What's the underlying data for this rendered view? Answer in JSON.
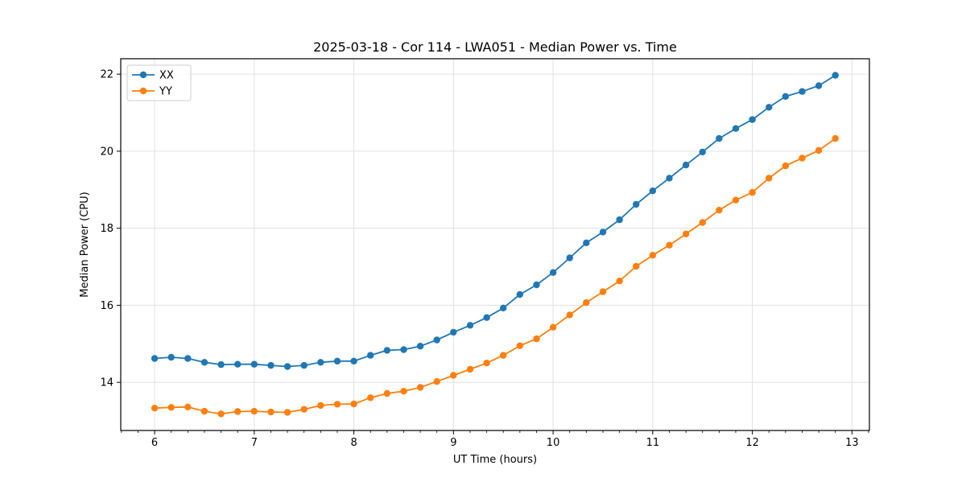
{
  "figure": {
    "background": "#ffffff",
    "text_color": "#000000",
    "grid_color": "#e0e0e0",
    "spine_color": "#000000",
    "legend_border_color": "#cccccc"
  },
  "chart_data": {
    "type": "line",
    "title": "2025-03-18 - Cor 114 - LWA051 - Median Power vs. Time",
    "xlabel": "UT Time (hours)",
    "ylabel": "Median Power (CPU)",
    "xlim": [
      5.66,
      13.175
    ],
    "ylim": [
      12.75,
      22.4
    ],
    "x_ticks": [
      6,
      7,
      8,
      9,
      10,
      11,
      12,
      13
    ],
    "y_ticks": [
      14,
      16,
      18,
      20,
      22
    ],
    "x_minor_tick_step": 0.166667,
    "grid": true,
    "legend_position": "upper left",
    "marker": "circle",
    "x": [
      6.0,
      6.1667,
      6.3333,
      6.5,
      6.6667,
      6.8333,
      7.0,
      7.1667,
      7.3333,
      7.5,
      7.6667,
      7.8333,
      8.0,
      8.1667,
      8.3333,
      8.5,
      8.6667,
      8.8333,
      9.0,
      9.1667,
      9.3333,
      9.5,
      9.6667,
      9.8333,
      10.0,
      10.1667,
      10.3333,
      10.5,
      10.6667,
      10.8333,
      11.0,
      11.1667,
      11.3333,
      11.5,
      11.6667,
      11.8333,
      12.0,
      12.1667,
      12.3333,
      12.5,
      12.6667,
      12.8333
    ],
    "series": [
      {
        "name": "XX",
        "color": "#1f77b4",
        "values": [
          14.62,
          14.65,
          14.62,
          14.52,
          14.46,
          14.47,
          14.47,
          14.44,
          14.41,
          14.44,
          14.52,
          14.55,
          14.55,
          14.7,
          14.83,
          14.85,
          14.94,
          15.1,
          15.3,
          15.48,
          15.68,
          15.93,
          16.28,
          16.53,
          16.85,
          17.23,
          17.62,
          17.9,
          18.22,
          18.62,
          18.97,
          19.3,
          19.64,
          19.98,
          20.33,
          20.59,
          20.82,
          21.14,
          21.42,
          21.55,
          21.7,
          21.97
        ]
      },
      {
        "name": "YY",
        "color": "#ff7f0e",
        "values": [
          13.33,
          13.35,
          13.36,
          13.25,
          13.18,
          13.24,
          13.25,
          13.23,
          13.22,
          13.3,
          13.4,
          13.43,
          13.44,
          13.6,
          13.71,
          13.77,
          13.87,
          14.02,
          14.18,
          14.34,
          14.5,
          14.7,
          14.95,
          15.13,
          15.43,
          15.75,
          16.07,
          16.35,
          16.63,
          17.01,
          17.3,
          17.56,
          17.85,
          18.15,
          18.47,
          18.73,
          18.93,
          19.3,
          19.62,
          19.82,
          20.02,
          20.33
        ]
      }
    ]
  }
}
